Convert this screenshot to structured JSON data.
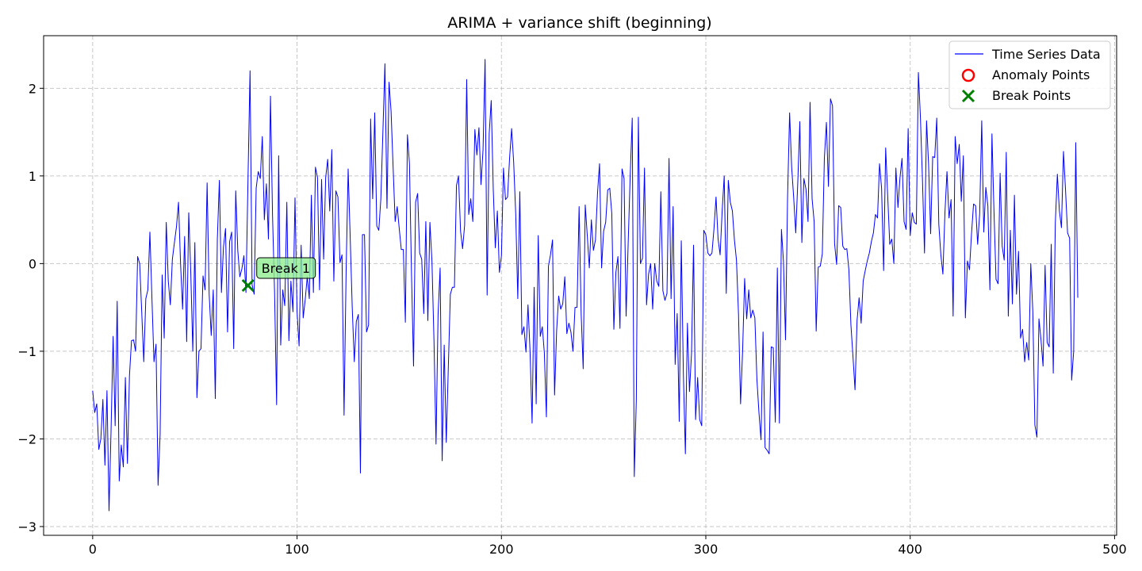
{
  "chart_data": {
    "type": "line",
    "title": "ARIMA + variance shift (beginning)",
    "xlabel": "",
    "ylabel": "",
    "xlim": [
      -24,
      501
    ],
    "ylim": [
      -3.1,
      2.6
    ],
    "xticks": [
      0,
      100,
      200,
      300,
      400,
      500
    ],
    "yticks": [
      -3,
      -2,
      -1,
      0,
      1,
      2
    ],
    "xtick_labels": [
      "0",
      "100",
      "200",
      "300",
      "400",
      "500"
    ],
    "ytick_labels": [
      "−3",
      "−2",
      "−1",
      "0",
      "1",
      "2"
    ],
    "grid": true,
    "legend_position": "top-right",
    "series": [
      {
        "name": "Time Series Data",
        "color": "#0000ff",
        "x_start": 0,
        "values": [
          -1.45,
          -1.7,
          -1.6,
          -2.12,
          -2.0,
          -1.55,
          -2.3,
          -1.45,
          -2.82,
          -1.9,
          -0.83,
          -1.85,
          -0.43,
          -2.48,
          -2.07,
          -2.32,
          -1.3,
          -2.28,
          -1.28,
          -0.88,
          -0.87,
          -1.0,
          0.08,
          0.0,
          -0.55,
          -1.12,
          -0.4,
          -0.3,
          0.36,
          -0.4,
          -1.12,
          -0.92,
          -2.53,
          -1.95,
          -0.13,
          -0.85,
          0.47,
          -0.2,
          -0.47,
          0.05,
          0.24,
          0.42,
          0.7,
          0.0,
          -0.52,
          0.31,
          -0.89,
          0.58,
          -0.1,
          -1.0,
          0.24,
          -1.53,
          -1.0,
          -0.97,
          -0.14,
          -0.3,
          0.92,
          -0.35,
          -0.82,
          -0.3,
          -1.54,
          0.28,
          0.95,
          -0.33,
          0.19,
          0.4,
          -0.78,
          0.25,
          0.36,
          -0.97,
          0.83,
          0.15,
          -0.15,
          -0.06,
          0.09,
          -0.33,
          0.96,
          2.2,
          -0.24,
          -0.35,
          0.86,
          1.05,
          0.97,
          1.45,
          0.5,
          0.91,
          0.28,
          1.91,
          0.55,
          -0.33,
          -1.61,
          1.23,
          -0.93,
          -0.3,
          -0.48,
          0.7,
          -0.88,
          -0.2,
          -0.55,
          0.75,
          -0.55,
          -0.94,
          0.21,
          -0.62,
          -0.41,
          -0.15,
          -0.4,
          0.78,
          -0.33,
          1.1,
          0.98,
          -0.3,
          0.96,
          0.05,
          0.98,
          1.19,
          0.6,
          1.3,
          -0.2,
          0.83,
          0.76,
          0.01,
          0.1,
          -1.73,
          -0.1,
          1.08,
          0.3,
          -0.5,
          -1.12,
          -0.66,
          -0.58,
          -2.39,
          0.33,
          0.33,
          -0.78,
          -0.7,
          1.65,
          0.74,
          1.72,
          0.43,
          0.38,
          0.74,
          1.5,
          2.28,
          0.63,
          2.07,
          1.74,
          1.1,
          0.48,
          0.65,
          0.4,
          0.16,
          0.16,
          -0.67,
          1.47,
          1.14,
          -0.12,
          -1.17,
          0.7,
          0.8,
          0.12,
          0.05,
          -0.57,
          0.48,
          -0.65,
          0.47,
          0.03,
          -0.88,
          -2.06,
          -0.58,
          -0.05,
          -2.25,
          -0.93,
          -2.04,
          -1.2,
          -0.35,
          -0.27,
          -0.27,
          0.89,
          1.0,
          0.37,
          0.17,
          0.44,
          2.1,
          0.56,
          0.74,
          0.48,
          1.53,
          1.24,
          1.55,
          0.9,
          1.3,
          2.33,
          -0.36,
          1.48,
          1.86,
          0.85,
          0.18,
          0.6,
          -0.1,
          0.09,
          1.09,
          0.73,
          0.76,
          1.21,
          1.54,
          1.15,
          0.56,
          -0.4,
          0.82,
          -0.81,
          -0.72,
          -1.01,
          -0.47,
          -1.0,
          -1.82,
          -0.27,
          -1.6,
          0.32,
          -0.83,
          -0.72,
          -1.02,
          -1.75,
          -0.03,
          0.1,
          0.27,
          -1.5,
          -0.77,
          -0.37,
          -0.52,
          -0.46,
          -0.15,
          -0.8,
          -0.68,
          -0.78,
          -1.0,
          -0.5,
          -0.5,
          0.65,
          -0.57,
          -1.2,
          0.67,
          0.32,
          -0.05,
          0.5,
          0.15,
          0.27,
          0.8,
          1.14,
          -0.05,
          0.37,
          0.47,
          0.84,
          0.86,
          0.57,
          -0.75,
          -0.1,
          0.08,
          -0.74,
          1.08,
          0.97,
          -0.6,
          0.22,
          1.0,
          1.66,
          -2.43,
          -1.55,
          1.67,
          0.0,
          0.06,
          1.09,
          -0.47,
          -0.12,
          0.0,
          -0.52,
          0.0,
          -0.2,
          -0.26,
          0.82,
          -0.31,
          -0.42,
          -0.34,
          1.2,
          -0.4,
          0.65,
          -1.15,
          -0.57,
          -1.8,
          0.26,
          -1.24,
          -2.17,
          -0.68,
          -1.46,
          -1.03,
          0.21,
          -1.78,
          -1.3,
          -1.78,
          -1.85,
          0.38,
          0.33,
          0.12,
          0.09,
          0.12,
          0.4,
          0.76,
          0.28,
          0.1,
          0.6,
          1.0,
          -0.34,
          0.95,
          0.7,
          0.6,
          0.27,
          0.04,
          -0.58,
          -1.6,
          -1.0,
          -0.17,
          -0.63,
          -0.3,
          -0.62,
          -0.53,
          -0.62,
          -1.32,
          -1.7,
          -2.01,
          -0.78,
          -2.1,
          -2.13,
          -2.17,
          -0.95,
          -0.96,
          -1.81,
          -0.05,
          -1.82,
          0.39,
          0.02,
          -0.87,
          0.76,
          1.72,
          1.1,
          0.75,
          0.35,
          0.93,
          1.62,
          0.24,
          0.97,
          0.85,
          0.48,
          1.84,
          0.74,
          0.48,
          -0.77,
          -0.04,
          -0.03,
          0.11,
          1.2,
          1.61,
          0.88,
          1.88,
          1.8,
          0.23,
          -0.01,
          0.66,
          0.64,
          0.2,
          0.16,
          0.17,
          -0.07,
          -0.7,
          -1.06,
          -1.44,
          -0.65,
          -0.39,
          -0.68,
          -0.2,
          -0.08,
          0.03,
          0.12,
          0.25,
          0.35,
          0.56,
          0.52,
          1.14,
          0.86,
          -0.08,
          1.32,
          0.77,
          0.22,
          0.28,
          0.0,
          1.09,
          0.64,
          0.98,
          1.2,
          0.48,
          0.39,
          1.54,
          0.32,
          0.58,
          0.47,
          0.45,
          2.18,
          1.67,
          0.96,
          0.12,
          1.63,
          1.13,
          0.34,
          1.22,
          1.21,
          1.66,
          0.45,
          0.1,
          -0.12,
          0.58,
          1.05,
          0.52,
          0.73,
          -0.6,
          1.45,
          1.14,
          1.36,
          0.71,
          1.23,
          -0.62,
          0.03,
          -0.07,
          0.34,
          0.68,
          0.66,
          0.22,
          0.57,
          1.63,
          0.36,
          0.87,
          0.66,
          -0.3,
          1.48,
          0.59,
          -0.18,
          -0.23,
          1.03,
          0.2,
          0.04,
          1.27,
          -0.6,
          0.38,
          -0.46,
          0.78,
          -0.35,
          0.14,
          -0.85,
          -0.75,
          -1.12,
          -0.9,
          -1.1,
          0.0,
          -0.55,
          -1.84,
          -1.98,
          -0.63,
          -0.87,
          -1.17,
          -0.02,
          -0.9,
          -0.95,
          0.22,
          -1.25,
          0.46,
          1.02,
          0.6,
          0.41,
          1.28,
          0.84,
          0.35,
          0.29,
          -1.33,
          -1.0,
          1.38,
          -0.39
        ]
      }
    ],
    "anomalies": [],
    "breaks": [
      {
        "x": 76,
        "y": -0.25,
        "label": "Break 1"
      }
    ],
    "legend": [
      {
        "label": "Time Series Data",
        "marker": "line",
        "color": "#0000ff"
      },
      {
        "label": "Anomaly Points",
        "marker": "circle",
        "color": "#ff0000"
      },
      {
        "label": "Break Points",
        "marker": "x",
        "color": "#008000"
      }
    ]
  }
}
